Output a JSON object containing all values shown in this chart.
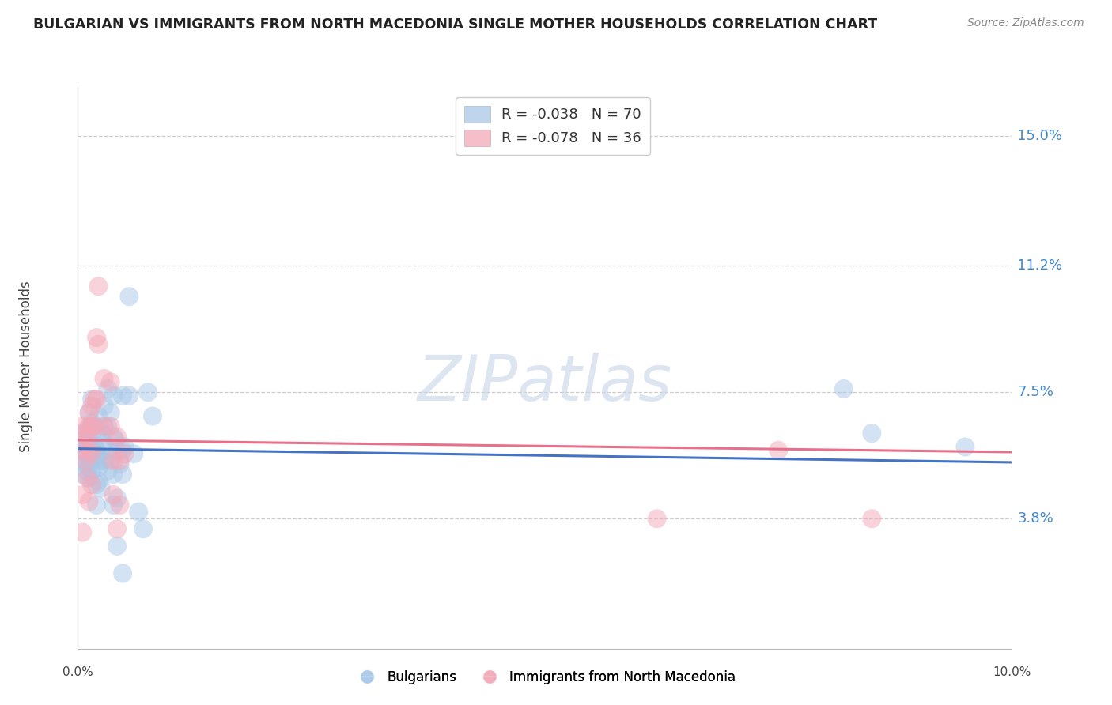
{
  "title": "BULGARIAN VS IMMIGRANTS FROM NORTH MACEDONIA SINGLE MOTHER HOUSEHOLDS CORRELATION CHART",
  "source": "Source: ZipAtlas.com",
  "ylabel": "Single Mother Households",
  "yticks": [
    3.8,
    7.5,
    11.2,
    15.0
  ],
  "ytick_labels": [
    "3.8%",
    "7.5%",
    "11.2%",
    "15.0%"
  ],
  "xlim": [
    0.0,
    10.0
  ],
  "ylim": [
    0.0,
    16.5
  ],
  "legend_label1": "Bulgarians",
  "legend_label2": "Immigrants from North Macedonia",
  "blue_color": "#a8c8e8",
  "pink_color": "#f4a8b8",
  "line_blue": "#4472c4",
  "line_pink": "#e8708a",
  "blue_data": [
    [
      0.05,
      5.9
    ],
    [
      0.05,
      6.3
    ],
    [
      0.05,
      5.5
    ],
    [
      0.05,
      5.1
    ],
    [
      0.08,
      6.1
    ],
    [
      0.08,
      5.8
    ],
    [
      0.08,
      5.4
    ],
    [
      0.1,
      6.4
    ],
    [
      0.1,
      5.7
    ],
    [
      0.1,
      5.5
    ],
    [
      0.1,
      5.2
    ],
    [
      0.12,
      6.9
    ],
    [
      0.12,
      6.2
    ],
    [
      0.12,
      5.9
    ],
    [
      0.12,
      5.6
    ],
    [
      0.12,
      5.3
    ],
    [
      0.12,
      5.0
    ],
    [
      0.15,
      7.3
    ],
    [
      0.15,
      6.6
    ],
    [
      0.15,
      5.8
    ],
    [
      0.15,
      5.5
    ],
    [
      0.15,
      5.2
    ],
    [
      0.18,
      6.5
    ],
    [
      0.18,
      5.9
    ],
    [
      0.18,
      5.6
    ],
    [
      0.2,
      6.3
    ],
    [
      0.2,
      5.8
    ],
    [
      0.2,
      4.8
    ],
    [
      0.2,
      4.2
    ],
    [
      0.22,
      6.8
    ],
    [
      0.22,
      5.7
    ],
    [
      0.22,
      5.3
    ],
    [
      0.22,
      4.9
    ],
    [
      0.25,
      6.3
    ],
    [
      0.25,
      5.5
    ],
    [
      0.25,
      4.7
    ],
    [
      0.28,
      7.1
    ],
    [
      0.28,
      6.5
    ],
    [
      0.28,
      6.0
    ],
    [
      0.28,
      5.5
    ],
    [
      0.32,
      7.6
    ],
    [
      0.32,
      6.5
    ],
    [
      0.32,
      5.8
    ],
    [
      0.32,
      5.2
    ],
    [
      0.35,
      6.9
    ],
    [
      0.35,
      5.5
    ],
    [
      0.38,
      7.4
    ],
    [
      0.38,
      6.2
    ],
    [
      0.38,
      5.1
    ],
    [
      0.38,
      4.2
    ],
    [
      0.4,
      6.1
    ],
    [
      0.42,
      5.8
    ],
    [
      0.42,
      4.4
    ],
    [
      0.42,
      3.0
    ],
    [
      0.45,
      5.4
    ],
    [
      0.48,
      7.4
    ],
    [
      0.48,
      5.8
    ],
    [
      0.48,
      5.1
    ],
    [
      0.48,
      2.2
    ],
    [
      0.5,
      5.9
    ],
    [
      0.55,
      10.3
    ],
    [
      0.55,
      7.4
    ],
    [
      0.6,
      5.7
    ],
    [
      0.65,
      4.0
    ],
    [
      0.7,
      3.5
    ],
    [
      0.75,
      7.5
    ],
    [
      0.8,
      6.8
    ],
    [
      8.2,
      7.6
    ],
    [
      8.5,
      6.3
    ],
    [
      9.5,
      5.9
    ]
  ],
  "pink_data": [
    [
      0.05,
      6.5
    ],
    [
      0.05,
      5.8
    ],
    [
      0.05,
      4.5
    ],
    [
      0.05,
      3.4
    ],
    [
      0.08,
      6.3
    ],
    [
      0.08,
      5.5
    ],
    [
      0.1,
      6.2
    ],
    [
      0.1,
      5.0
    ],
    [
      0.12,
      6.9
    ],
    [
      0.12,
      6.5
    ],
    [
      0.12,
      5.8
    ],
    [
      0.12,
      4.3
    ],
    [
      0.15,
      7.1
    ],
    [
      0.15,
      6.5
    ],
    [
      0.15,
      5.7
    ],
    [
      0.15,
      4.8
    ],
    [
      0.18,
      7.3
    ],
    [
      0.18,
      6.5
    ],
    [
      0.2,
      9.1
    ],
    [
      0.2,
      7.3
    ],
    [
      0.22,
      10.6
    ],
    [
      0.22,
      8.9
    ],
    [
      0.28,
      7.9
    ],
    [
      0.28,
      6.5
    ],
    [
      0.35,
      7.8
    ],
    [
      0.35,
      6.5
    ],
    [
      0.38,
      5.5
    ],
    [
      0.38,
      4.5
    ],
    [
      0.42,
      6.2
    ],
    [
      0.42,
      3.5
    ],
    [
      0.45,
      5.5
    ],
    [
      0.45,
      4.2
    ],
    [
      0.5,
      5.7
    ],
    [
      6.2,
      3.8
    ],
    [
      7.5,
      5.8
    ],
    [
      8.5,
      3.8
    ]
  ],
  "blue_line_y0": 5.85,
  "blue_line_y1": 5.45,
  "pink_line_y0": 6.1,
  "pink_line_y1": 5.75
}
